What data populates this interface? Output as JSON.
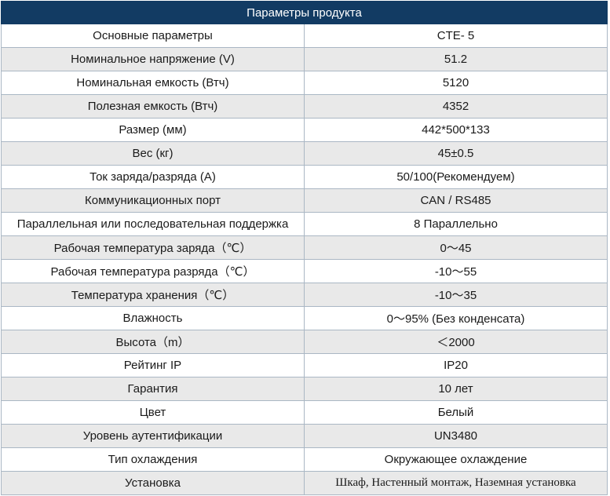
{
  "table": {
    "title": "Параметры продукта",
    "rows": [
      {
        "label": "Основные параметры",
        "value": "CTE- 5"
      },
      {
        "label": "Номинальное напряжение (V)",
        "value": "51.2"
      },
      {
        "label": "Номинальная емкость (Втч)",
        "value": "5120"
      },
      {
        "label": "Полезная емкость (Втч)",
        "value": "4352"
      },
      {
        "label": "Размер (мм)",
        "value": "442*500*133"
      },
      {
        "label": "Вес (кг)",
        "value": "45±0.5"
      },
      {
        "label": "Ток заряда/разряда (A)",
        "value": "50/100(Рекомендуем)"
      },
      {
        "label": "Коммуникационных порт",
        "value": "CAN / RS485"
      },
      {
        "label": "Параллельная или последовательная поддержка",
        "value": "8 Параллельно"
      },
      {
        "label": "Рабочая температура заряда（℃）",
        "value": "0～45"
      },
      {
        "label": "Рабочая температура разряда（℃）",
        "value": "-10～55"
      },
      {
        "label": "Температура хранения（℃）",
        "value": "-10～35"
      },
      {
        "label": "Влажность",
        "value": "0～95% (Без конденсата)"
      },
      {
        "label": "Высота（m）",
        "value": "＜2000"
      },
      {
        "label": "Рейтинг IP",
        "value": "IP20"
      },
      {
        "label": "Гарантия",
        "value": "10 лет"
      },
      {
        "label": "Цвет",
        "value": "Белый"
      },
      {
        "label": "Уровень аутентификации",
        "value": "UN3480"
      },
      {
        "label": "Тип охлаждения",
        "value": "Окружающее охлаждение"
      },
      {
        "label": "Установка",
        "value": "Шкаф, Настенный монтаж, Наземная установка"
      }
    ]
  }
}
